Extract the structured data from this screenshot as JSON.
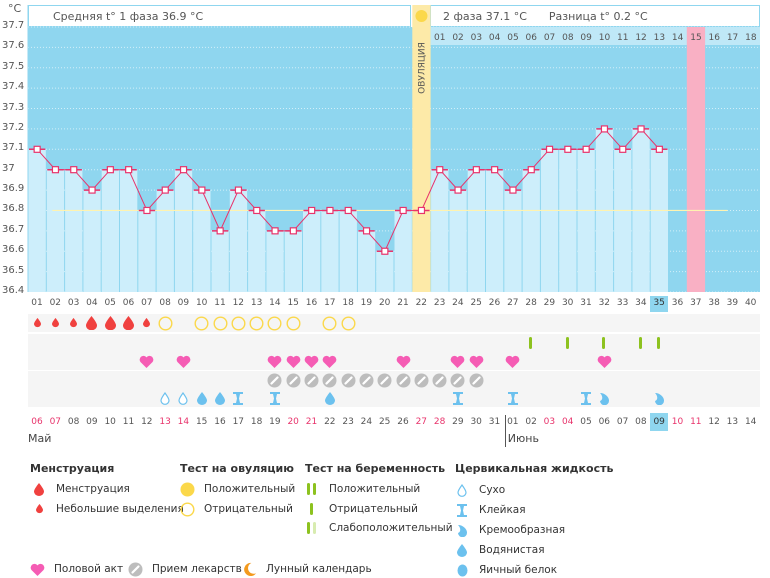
{
  "unit_label": "°C",
  "header": {
    "phase1": "Средняя t° 1 фаза 36.9 °C",
    "phase2": "2 фаза 37.1 °C",
    "difference": "Разница t° 0.2 °C"
  },
  "ovulation_label": "ОВУЛЯЦИЯ",
  "colors": {
    "plot_bg": "#8fd6ef",
    "bar_fill": "#cdeefb",
    "line": "#e8336b",
    "ovulation": "#fdeaa8",
    "expected_period": "#f9b0c4",
    "coverline": "#fff3b0",
    "weekend_red": "#e8336b",
    "menstruation": "#f0413f",
    "ovu_test": "#fbd84a",
    "preg_test": "#8dc21f",
    "heart": "#f55cb4",
    "pill": "#bdbdbd",
    "cm": "#6cc1ee",
    "moon": "#f39a1e"
  },
  "chart_data": {
    "type": "line",
    "title": "",
    "xlabel": "",
    "ylabel": "°C",
    "ylim": [
      36.4,
      37.7
    ],
    "yticks": [
      "37.7",
      "37.6",
      "37.5",
      "37.4",
      "37.3",
      "37.2",
      "37.1",
      "37",
      "36.9",
      "36.8",
      "36.7",
      "36.6",
      "36.5",
      "36.4"
    ],
    "cycle_days": [
      "01",
      "02",
      "03",
      "04",
      "05",
      "06",
      "07",
      "08",
      "09",
      "10",
      "11",
      "12",
      "13",
      "14",
      "15",
      "16",
      "17",
      "18",
      "19",
      "20",
      "21",
      "22",
      "23",
      "24",
      "25",
      "26",
      "27",
      "28",
      "29",
      "30",
      "31",
      "32",
      "33",
      "34",
      "35",
      "36",
      "37",
      "38",
      "39",
      "40"
    ],
    "temperatures": [
      37.1,
      37.0,
      37.0,
      36.9,
      37.0,
      37.0,
      36.8,
      36.9,
      37.0,
      36.9,
      36.7,
      36.9,
      36.8,
      36.7,
      36.7,
      36.8,
      36.8,
      36.8,
      36.7,
      36.6,
      36.8,
      36.8,
      37.0,
      36.9,
      37.0,
      37.0,
      36.9,
      37.0,
      37.1,
      37.1,
      37.1,
      37.2,
      37.1,
      37.2,
      37.1,
      null,
      null,
      null,
      null,
      null
    ],
    "coverline": 36.8,
    "ovulation_day": 22,
    "current_day": 35,
    "expected_period_day": 37,
    "phase2_days": [
      "01",
      "02",
      "03",
      "04",
      "05",
      "06",
      "07",
      "08",
      "09",
      "10",
      "11",
      "12",
      "13",
      "14",
      "15",
      "16",
      "17",
      "18"
    ],
    "phase2_highlight": "15",
    "calendar_dates": [
      "06",
      "07",
      "08",
      "09",
      "10",
      "11",
      "12",
      "13",
      "14",
      "15",
      "16",
      "17",
      "18",
      "19",
      "20",
      "21",
      "22",
      "23",
      "24",
      "25",
      "26",
      "27",
      "28",
      "29",
      "30",
      "31",
      "01",
      "02",
      "03",
      "04",
      "05",
      "06",
      "07",
      "08",
      "09",
      "10",
      "11",
      "12",
      "13",
      "14"
    ],
    "calendar_weekend": [
      true,
      true,
      false,
      false,
      false,
      false,
      false,
      true,
      true,
      false,
      false,
      false,
      false,
      false,
      true,
      true,
      false,
      false,
      false,
      false,
      false,
      true,
      true,
      false,
      false,
      false,
      false,
      false,
      true,
      true,
      false,
      false,
      false,
      false,
      false,
      true,
      true,
      false,
      false,
      false
    ],
    "calendar_today_index": 34,
    "months": [
      {
        "label": "Май",
        "start_index": 0
      },
      {
        "label": "Июнь",
        "start_index": 26
      }
    ],
    "rows": {
      "menstruation": [
        "light",
        "light",
        "light",
        "heavy",
        "heavy",
        "heavy",
        "light",
        null,
        null,
        null,
        null,
        null,
        null,
        null,
        null,
        null,
        null,
        null,
        null,
        null,
        null,
        null,
        null,
        null,
        null,
        null,
        null,
        null,
        null,
        null,
        null,
        null,
        null,
        null,
        null,
        null,
        null,
        null,
        null,
        null
      ],
      "ovulation_test": [
        null,
        null,
        null,
        null,
        null,
        null,
        null,
        "neg",
        null,
        "neg",
        "neg",
        "neg",
        "neg",
        "neg",
        "neg",
        null,
        "neg",
        "neg",
        null,
        null,
        null,
        null,
        null,
        null,
        null,
        null,
        null,
        null,
        null,
        null,
        null,
        null,
        null,
        null,
        null,
        null,
        null,
        null,
        null,
        null
      ],
      "pregnancy_test": [
        null,
        null,
        null,
        null,
        null,
        null,
        null,
        null,
        null,
        null,
        null,
        null,
        null,
        null,
        null,
        null,
        null,
        null,
        null,
        null,
        null,
        null,
        null,
        null,
        null,
        null,
        null,
        "neg",
        null,
        "neg",
        null,
        "neg",
        null,
        "neg",
        "neg",
        null,
        null,
        null,
        null,
        null
      ],
      "intercourse": [
        null,
        null,
        null,
        null,
        null,
        null,
        true,
        null,
        true,
        null,
        null,
        null,
        null,
        true,
        true,
        true,
        true,
        null,
        null,
        null,
        true,
        null,
        null,
        true,
        true,
        null,
        true,
        null,
        null,
        null,
        null,
        true,
        null,
        null,
        null,
        null,
        null,
        null,
        null,
        null
      ],
      "medication": [
        null,
        null,
        null,
        null,
        null,
        null,
        null,
        null,
        null,
        null,
        null,
        null,
        null,
        true,
        true,
        true,
        true,
        true,
        true,
        true,
        true,
        true,
        true,
        true,
        true,
        null,
        null,
        null,
        null,
        null,
        null,
        null,
        null,
        null,
        null,
        null,
        null,
        null,
        null,
        null
      ],
      "cervical_fluid": [
        null,
        null,
        null,
        null,
        null,
        null,
        null,
        "dry",
        "dry",
        "watery",
        "watery",
        "sticky",
        null,
        "sticky",
        null,
        null,
        "watery",
        null,
        null,
        null,
        null,
        null,
        null,
        "sticky",
        null,
        null,
        "sticky",
        null,
        null,
        null,
        "sticky",
        "creamy",
        null,
        null,
        "creamy",
        null,
        null,
        null,
        null,
        null
      ]
    }
  },
  "legend": {
    "menstruation": {
      "title": "Менструация",
      "items": [
        "Менструация",
        "Небольшие выделения"
      ]
    },
    "ovulation_test": {
      "title": "Тест на овуляцию",
      "items": [
        "Положительный",
        "Отрицательный"
      ]
    },
    "pregnancy_test": {
      "title": "Тест на беременность",
      "items": [
        "Положительный",
        "Отрицательный",
        "Слабоположительный"
      ]
    },
    "cervical_fluid": {
      "title": "Цервикальная жидкость",
      "items": [
        "Сухо",
        "Клейкая",
        "Кремообразная",
        "Водянистая",
        "Яичный белок"
      ]
    },
    "bottom": [
      "Половой акт",
      "Прием лекарств",
      "Лунный календарь"
    ]
  }
}
